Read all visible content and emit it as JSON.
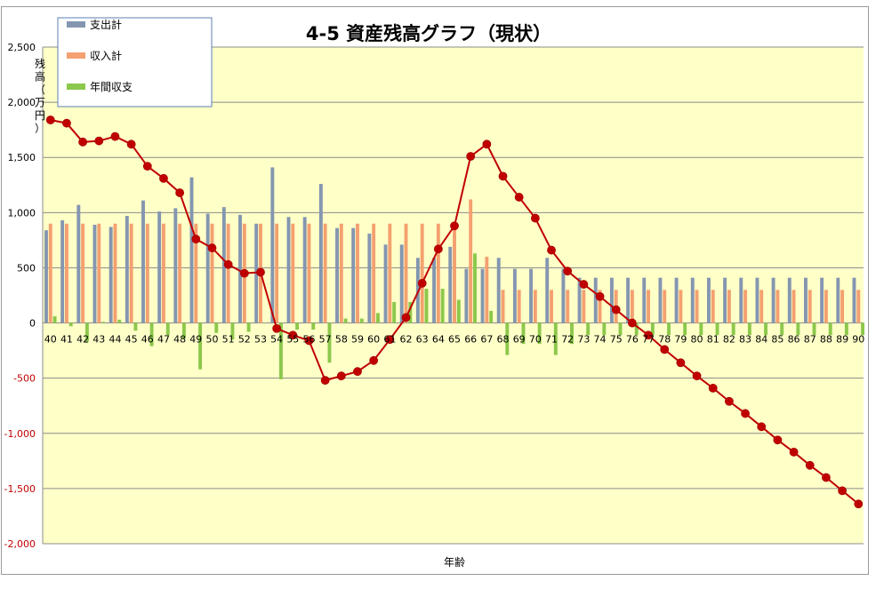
{
  "chart_data": {
    "type": "bar",
    "title": "4-5 資産残高グラフ（現状）",
    "xlabel": "年齢",
    "ylabel": "残高（万円）",
    "ylim": [
      -2000,
      2500
    ],
    "yticks": [
      "2,500",
      "2,000",
      "1,500",
      "1,000",
      "500",
      "0",
      "-500",
      "-1,000",
      "-1,500",
      "-2,000"
    ],
    "ytick_values": [
      2500,
      2000,
      1500,
      1000,
      500,
      0,
      -500,
      -1000,
      -1500,
      -2000
    ],
    "grid": true,
    "legend_position": "top-left",
    "categories": [
      "40",
      "41",
      "42",
      "43",
      "44",
      "45",
      "46",
      "47",
      "48",
      "49",
      "50",
      "51",
      "52",
      "53",
      "54",
      "55",
      "56",
      "57",
      "58",
      "59",
      "60",
      "61",
      "62",
      "63",
      "64",
      "65",
      "66",
      "67",
      "68",
      "69",
      "70",
      "71",
      "72",
      "73",
      "74",
      "75",
      "76",
      "77",
      "78",
      "79",
      "80",
      "81",
      "82",
      "83",
      "84",
      "85",
      "86",
      "87",
      "88",
      "89",
      "90"
    ],
    "series": [
      {
        "name": "支出計",
        "kind": "bar",
        "color": "#8496b0",
        "values": [
          840,
          930,
          1070,
          890,
          870,
          970,
          1110,
          1010,
          1040,
          1320,
          990,
          1050,
          980,
          900,
          1410,
          960,
          960,
          1260,
          860,
          860,
          810,
          710,
          710,
          590,
          590,
          690,
          490,
          490,
          590,
          490,
          490,
          590,
          490,
          410,
          410,
          410,
          410,
          410,
          410,
          410,
          410,
          410,
          410,
          410,
          410,
          410,
          410,
          410,
          410,
          410,
          410
        ]
      },
      {
        "name": "収入計",
        "kind": "bar",
        "color": "#f4a070",
        "values": [
          900,
          900,
          900,
          900,
          900,
          900,
          900,
          900,
          900,
          900,
          900,
          900,
          900,
          900,
          900,
          900,
          900,
          900,
          900,
          900,
          900,
          900,
          900,
          900,
          900,
          900,
          1120,
          600,
          300,
          300,
          300,
          300,
          300,
          300,
          300,
          300,
          300,
          300,
          300,
          300,
          300,
          300,
          300,
          300,
          300,
          300,
          300,
          300,
          300,
          300,
          300
        ]
      },
      {
        "name": "年間収支",
        "kind": "bar",
        "color": "#8cc84b",
        "values": [
          60,
          -30,
          -170,
          10,
          30,
          -70,
          -210,
          -110,
          -140,
          -420,
          -90,
          -150,
          -80,
          0,
          -510,
          -60,
          -60,
          -360,
          40,
          40,
          90,
          190,
          190,
          310,
          310,
          210,
          630,
          110,
          -290,
          -190,
          -190,
          -290,
          -190,
          -110,
          -110,
          -110,
          -110,
          -110,
          -110,
          -110,
          -110,
          -110,
          -110,
          -110,
          -110,
          -110,
          -110,
          -110,
          -110,
          -110,
          -110
        ]
      },
      {
        "kind": "line",
        "color": "#c00000",
        "values": [
          1840,
          1810,
          1640,
          1650,
          1690,
          1620,
          1420,
          1310,
          1180,
          760,
          680,
          530,
          450,
          460,
          -50,
          -110,
          -160,
          -520,
          -480,
          -440,
          -340,
          -150,
          50,
          360,
          670,
          880,
          1510,
          1620,
          1330,
          1140,
          950,
          660,
          470,
          350,
          240,
          120,
          0,
          -110,
          -240,
          -360,
          -480,
          -590,
          -710,
          -820,
          -940,
          -1060,
          -1170,
          -1290,
          -1400,
          -1520,
          -1640
        ]
      }
    ]
  }
}
